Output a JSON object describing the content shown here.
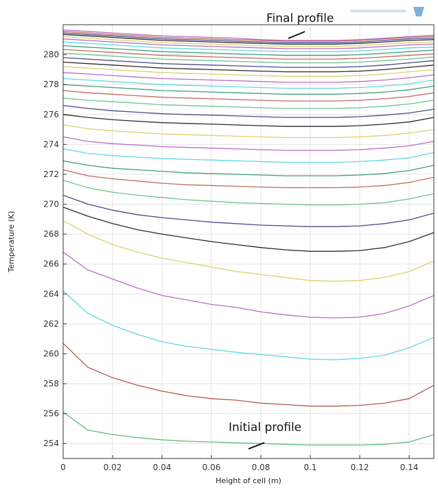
{
  "chart_data": {
    "type": "line",
    "xlabel": "Height of cell (m)",
    "ylabel": "Temperature (K)",
    "xlim": [
      0,
      0.15
    ],
    "ylim": [
      253,
      282
    ],
    "xticks": [
      "0",
      "0.02",
      "0.04",
      "0.06",
      "0.08",
      "0.1",
      "0.12",
      "0.14"
    ],
    "yticks": [
      "254",
      "256",
      "258",
      "260",
      "262",
      "264",
      "266",
      "268",
      "270",
      "272",
      "274",
      "276",
      "278",
      "280"
    ],
    "grid": true,
    "x": [
      0,
      0.01,
      0.02,
      0.03,
      0.04,
      0.05,
      0.06,
      0.07,
      0.08,
      0.09,
      0.1,
      0.11,
      0.12,
      0.13,
      0.14,
      0.15
    ],
    "series": [
      {
        "color": "#5fb87a",
        "values": [
          256.1,
          254.9,
          254.6,
          254.4,
          254.25,
          254.15,
          254.1,
          254.05,
          254.0,
          253.95,
          253.9,
          253.9,
          253.9,
          253.95,
          254.1,
          254.6
        ]
      },
      {
        "color": "#b5574f",
        "values": [
          260.7,
          259.1,
          258.4,
          257.9,
          257.5,
          257.2,
          257.0,
          256.9,
          256.7,
          256.6,
          256.5,
          256.5,
          256.55,
          256.7,
          257.0,
          257.9
        ]
      },
      {
        "color": "#5fd6e0",
        "values": [
          264.2,
          262.7,
          261.9,
          261.3,
          260.8,
          260.5,
          260.3,
          260.1,
          259.95,
          259.8,
          259.65,
          259.6,
          259.7,
          259.9,
          260.4,
          261.1
        ]
      },
      {
        "color": "#b96bc4",
        "values": [
          266.8,
          265.6,
          265.0,
          264.4,
          263.9,
          263.6,
          263.3,
          263.1,
          262.8,
          262.6,
          262.45,
          262.4,
          262.45,
          262.7,
          263.2,
          263.9
        ]
      },
      {
        "color": "#d9d16a",
        "values": [
          268.9,
          268.0,
          267.3,
          266.8,
          266.4,
          266.1,
          265.8,
          265.5,
          265.3,
          265.1,
          264.9,
          264.85,
          264.9,
          265.1,
          265.5,
          266.2
        ]
      },
      {
        "color": "#2a2a2a",
        "values": [
          269.8,
          269.2,
          268.7,
          268.3,
          268.0,
          267.75,
          267.5,
          267.3,
          267.1,
          266.95,
          266.85,
          266.85,
          266.9,
          267.1,
          267.5,
          268.1
        ]
      },
      {
        "color": "#4a4a8a",
        "values": [
          270.6,
          270.0,
          269.6,
          269.3,
          269.1,
          268.95,
          268.8,
          268.7,
          268.6,
          268.55,
          268.5,
          268.5,
          268.55,
          268.7,
          268.95,
          269.4
        ]
      },
      {
        "color": "#6cc28c",
        "values": [
          271.6,
          271.1,
          270.8,
          270.6,
          270.45,
          270.3,
          270.2,
          270.1,
          270.05,
          270.0,
          269.95,
          269.95,
          270.0,
          270.1,
          270.35,
          270.7
        ]
      },
      {
        "color": "#c06a5e",
        "values": [
          272.3,
          271.9,
          271.7,
          271.55,
          271.4,
          271.3,
          271.25,
          271.2,
          271.15,
          271.1,
          271.1,
          271.1,
          271.15,
          271.25,
          271.45,
          271.8
        ]
      },
      {
        "color": "#3f9e7d",
        "values": [
          272.9,
          272.6,
          272.4,
          272.3,
          272.2,
          272.1,
          272.05,
          272.0,
          271.95,
          271.9,
          271.9,
          271.9,
          271.95,
          272.05,
          272.25,
          272.6
        ]
      },
      {
        "color": "#5fd6e0",
        "values": [
          273.7,
          273.4,
          273.25,
          273.15,
          273.05,
          273.0,
          272.95,
          272.9,
          272.85,
          272.8,
          272.8,
          272.8,
          272.85,
          272.95,
          273.1,
          273.45
        ]
      },
      {
        "color": "#b96bc4",
        "values": [
          274.5,
          274.2,
          274.05,
          273.95,
          273.85,
          273.8,
          273.75,
          273.7,
          273.65,
          273.6,
          273.6,
          273.6,
          273.65,
          273.75,
          273.9,
          274.2
        ]
      },
      {
        "color": "#d9d16a",
        "values": [
          275.3,
          275.05,
          274.9,
          274.8,
          274.7,
          274.65,
          274.6,
          274.55,
          274.5,
          274.45,
          274.45,
          274.45,
          274.5,
          274.6,
          274.75,
          275.0
        ]
      },
      {
        "color": "#2a2a2a",
        "values": [
          276.0,
          275.8,
          275.65,
          275.55,
          275.45,
          275.4,
          275.35,
          275.3,
          275.25,
          275.2,
          275.2,
          275.2,
          275.25,
          275.35,
          275.5,
          275.8
        ]
      },
      {
        "color": "#4a4a8a",
        "values": [
          276.6,
          276.4,
          276.25,
          276.15,
          276.05,
          276.0,
          275.95,
          275.9,
          275.85,
          275.8,
          275.8,
          275.8,
          275.85,
          275.95,
          276.1,
          276.35
        ]
      },
      {
        "color": "#6cc28c",
        "values": [
          277.1,
          276.95,
          276.85,
          276.75,
          276.65,
          276.6,
          276.55,
          276.5,
          276.45,
          276.4,
          276.4,
          276.4,
          276.45,
          276.55,
          276.7,
          276.95
        ]
      },
      {
        "color": "#c06a5e",
        "values": [
          277.6,
          277.45,
          277.35,
          277.25,
          277.15,
          277.1,
          277.05,
          277.0,
          276.95,
          276.9,
          276.9,
          276.9,
          276.95,
          277.05,
          277.2,
          277.45
        ]
      },
      {
        "color": "#3f9e7d",
        "values": [
          278.0,
          277.9,
          277.8,
          277.7,
          277.6,
          277.55,
          277.5,
          277.45,
          277.4,
          277.35,
          277.35,
          277.35,
          277.4,
          277.5,
          277.65,
          277.9
        ]
      },
      {
        "color": "#5fd6e0",
        "values": [
          278.4,
          278.3,
          278.2,
          278.1,
          278.0,
          277.95,
          277.9,
          277.85,
          277.8,
          277.75,
          277.75,
          277.75,
          277.8,
          277.9,
          278.05,
          278.3
        ]
      },
      {
        "color": "#b96bc4",
        "values": [
          278.8,
          278.7,
          278.6,
          278.5,
          278.4,
          278.35,
          278.3,
          278.25,
          278.2,
          278.15,
          278.15,
          278.15,
          278.2,
          278.3,
          278.45,
          278.65
        ]
      },
      {
        "color": "#d9d16a",
        "values": [
          279.2,
          279.1,
          279.0,
          278.9,
          278.8,
          278.75,
          278.7,
          278.65,
          278.6,
          278.55,
          278.55,
          278.55,
          278.6,
          278.7,
          278.85,
          279.0
        ]
      },
      {
        "color": "#2a2a2a",
        "values": [
          279.5,
          279.4,
          279.3,
          279.2,
          279.1,
          279.05,
          279.0,
          278.95,
          278.9,
          278.85,
          278.85,
          278.85,
          278.9,
          279.0,
          279.15,
          279.3
        ]
      },
      {
        "color": "#4a4a8a",
        "values": [
          279.8,
          279.7,
          279.6,
          279.5,
          279.4,
          279.35,
          279.3,
          279.25,
          279.2,
          279.15,
          279.15,
          279.15,
          279.2,
          279.3,
          279.45,
          279.6
        ]
      },
      {
        "color": "#6cc28c",
        "values": [
          280.1,
          280.0,
          279.9,
          279.8,
          279.7,
          279.65,
          279.6,
          279.55,
          279.5,
          279.45,
          279.45,
          279.45,
          279.5,
          279.6,
          279.7,
          279.85
        ]
      },
      {
        "color": "#c06a5e",
        "values": [
          280.35,
          280.25,
          280.15,
          280.05,
          279.95,
          279.9,
          279.85,
          279.8,
          279.75,
          279.7,
          279.7,
          279.7,
          279.75,
          279.85,
          279.95,
          280.05
        ]
      },
      {
        "color": "#3f9e7d",
        "values": [
          280.6,
          280.5,
          280.4,
          280.3,
          280.2,
          280.15,
          280.1,
          280.05,
          280.0,
          279.95,
          279.95,
          279.95,
          280.0,
          280.1,
          280.2,
          280.3
        ]
      },
      {
        "color": "#5fd6e0",
        "values": [
          280.85,
          280.75,
          280.65,
          280.55,
          280.45,
          280.4,
          280.35,
          280.3,
          280.25,
          280.2,
          280.2,
          280.2,
          280.25,
          280.35,
          280.45,
          280.5
        ]
      },
      {
        "color": "#b96bc4",
        "values": [
          281.05,
          280.95,
          280.85,
          280.75,
          280.65,
          280.6,
          280.55,
          280.5,
          280.45,
          280.4,
          280.4,
          280.4,
          280.45,
          280.55,
          280.65,
          280.7
        ]
      },
      {
        "color": "#d9d16a",
        "values": [
          281.2,
          281.1,
          281.0,
          280.9,
          280.8,
          280.75,
          280.7,
          280.65,
          280.6,
          280.55,
          280.55,
          280.55,
          280.6,
          280.7,
          280.8,
          280.85
        ]
      },
      {
        "color": "#2a2a2a",
        "values": [
          281.35,
          281.25,
          281.15,
          281.05,
          280.95,
          280.9,
          280.85,
          280.8,
          280.75,
          280.7,
          280.7,
          280.7,
          280.75,
          280.85,
          280.95,
          281.0
        ]
      },
      {
        "color": "#4a4a8a",
        "values": [
          281.45,
          281.35,
          281.25,
          281.15,
          281.05,
          281.0,
          280.95,
          280.9,
          280.85,
          280.8,
          280.8,
          280.8,
          280.85,
          280.95,
          281.05,
          281.1
        ]
      },
      {
        "color": "#c06a5e",
        "values": [
          281.55,
          281.45,
          281.35,
          281.25,
          281.15,
          281.1,
          281.05,
          281.0,
          280.95,
          280.9,
          280.9,
          280.9,
          280.95,
          281.05,
          281.15,
          281.2
        ]
      },
      {
        "color": "#b96bc4",
        "values": [
          281.65,
          281.55,
          281.45,
          281.35,
          281.25,
          281.2,
          281.15,
          281.1,
          281.0,
          280.95,
          280.95,
          280.95,
          281.0,
          281.1,
          281.2,
          281.3
        ]
      }
    ],
    "annotations": [
      {
        "text": "Final profile",
        "x": 0.09,
        "y": 280.6
      },
      {
        "text": "Initial profile",
        "x": 0.075,
        "y": 253.9
      }
    ]
  },
  "colors": {
    "grid": "#e3e3e3",
    "axis": "#333333",
    "watermark": "#7fb0d8"
  }
}
